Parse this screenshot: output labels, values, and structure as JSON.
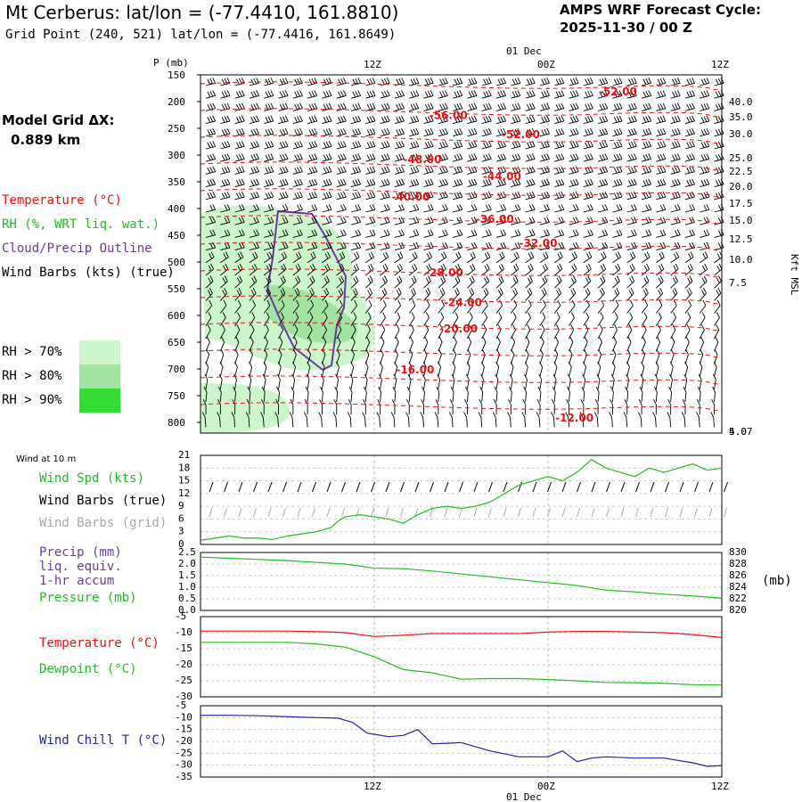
{
  "header": {
    "title": "Mt Cerberus:  lat/lon = (-77.4410, 161.8810)",
    "grid_point": "Grid Point (240, 521) lat/lon = (-77.4416, 161.8649)",
    "cycle_label": "AMPS WRF Forecast Cycle:",
    "cycle_value": "2025-11-30 / 00  Z"
  },
  "model_grid": {
    "label": "Model Grid ΔX:",
    "value": "0.889 km"
  },
  "colors": {
    "temperature": "#ee1111",
    "rh": "#22bb22",
    "cloud_outline": "#6a3a9e",
    "wind_barbs": "#000000",
    "wind_barbs_grid": "#aaaaaa",
    "rh70": "#ccf5cc",
    "rh80": "#a2e3a2",
    "rh90": "#33dd33",
    "wind_chill": "#2222aa",
    "precip_label": "#6a3a9e"
  },
  "upper_legend": {
    "temperature": "Temperature (°C)",
    "rh": "RH (%, WRT liq. wat.)",
    "cloud": "Cloud/Precip Outline",
    "wind": "Wind Barbs (kts) (true)",
    "rh70": "RH > 70%",
    "rh80": "RH > 80%",
    "rh90": "RH > 90%"
  },
  "wind_panel_labels": {
    "title": "Wind at 10 m",
    "speed": "Wind Spd (kts)",
    "barbs_true": "Wind Barbs (true)",
    "barbs_grid": "Wind Barbs (grid)"
  },
  "precip_panel_labels": {
    "precip": "Precip (mm)",
    "liq": "liq. equiv.",
    "accum": "1-hr accum",
    "pressure": "Pressure (mb)",
    "right_unit": "(mb)"
  },
  "temp_panel_labels": {
    "temperature": "Temperature (°C)",
    "dewpoint": "Dewpoint (°C)"
  },
  "chill_panel_labels": {
    "wind_chill": "Wind Chill T (°C)"
  },
  "chart_data": [
    {
      "type": "line",
      "name": "upper-air-cross-section",
      "yaxis_label": "P (mb)",
      "pressure_ticks": [
        "150",
        "200",
        "250",
        "300",
        "350",
        "400",
        "450",
        "500",
        "550",
        "600",
        "650",
        "700",
        "750",
        "800"
      ],
      "height_ticks": [
        "40.0",
        "35.0",
        "30.0",
        "25.0",
        "22.5",
        "20.0",
        "17.5",
        "15.0",
        "12.5",
        "10.0",
        "7.5",
        "5.0",
        "4.07"
      ],
      "height_label": "Kft MSL",
      "time_ticks_top": [
        "12Z",
        "00Z",
        "12Z"
      ],
      "date_label_top": "01 Dec",
      "xlim_hours": [
        0,
        36
      ],
      "ylim_mb": [
        150,
        820
      ],
      "temperature_labels": [
        {
          "text": "-52.00",
          "hour": 27.5,
          "p": 182
        },
        {
          "text": "-56.00",
          "hour": 15.8,
          "p": 226
        },
        {
          "text": "-52.00",
          "hour": 20.8,
          "p": 262
        },
        {
          "text": "-48.00",
          "hour": 14.0,
          "p": 308
        },
        {
          "text": "-44.00",
          "hour": 19.5,
          "p": 340
        },
        {
          "text": "-40.00",
          "hour": 13.2,
          "p": 378
        },
        {
          "text": "-36.00",
          "hour": 19.0,
          "p": 420
        },
        {
          "text": "-32.00",
          "hour": 22.0,
          "p": 465
        },
        {
          "text": "-28.00",
          "hour": 15.5,
          "p": 520
        },
        {
          "text": "-24.00",
          "hour": 16.8,
          "p": 576
        },
        {
          "text": "-20.00",
          "hour": 16.5,
          "p": 625
        },
        {
          "text": "-16.00",
          "hour": 13.5,
          "p": 702
        },
        {
          "text": "-12.00",
          "hour": 24.5,
          "p": 792
        }
      ]
    },
    {
      "type": "line",
      "name": "wind-10m",
      "yticks": [
        "21",
        "18",
        "15",
        "12",
        "9",
        "6",
        "3",
        "0"
      ],
      "ylim": [
        0,
        21
      ],
      "series": [
        {
          "name": "Wind Spd (kts)",
          "x": [
            0,
            1,
            2,
            3,
            4,
            5,
            6,
            7,
            8,
            9,
            9.5,
            10,
            11,
            12,
            13,
            14,
            15,
            16,
            17,
            18,
            19,
            20,
            21,
            22,
            23,
            24,
            25,
            26,
            27,
            28,
            29,
            30,
            31,
            32,
            33,
            34,
            35,
            36
          ],
          "values": [
            1,
            1.5,
            2,
            1.5,
            1.5,
            1.2,
            2,
            2.5,
            3,
            4,
            5.5,
            6.5,
            7,
            6.5,
            6,
            5,
            7,
            8.5,
            9,
            8.5,
            9,
            10,
            12,
            14,
            15,
            16,
            15,
            17,
            20,
            18,
            17,
            16,
            18,
            17,
            18,
            19,
            17.5,
            18
          ]
        }
      ]
    },
    {
      "type": "line",
      "name": "pressure",
      "yticks_left": [
        "2.5",
        "2.0",
        "1.5",
        "1.0",
        "0.5",
        "0.0"
      ],
      "yticks_right": [
        "830",
        "828",
        "826",
        "824",
        "822",
        "820"
      ],
      "ylim_right": [
        820,
        830
      ],
      "series": [
        {
          "name": "Pressure (mb)",
          "x": [
            0,
            2,
            4,
            6,
            8,
            10,
            12,
            14,
            16,
            18,
            20,
            22,
            24,
            26,
            28,
            30,
            32,
            34,
            36
          ],
          "values": [
            829.2,
            829.0,
            828.8,
            828.6,
            828.3,
            828.0,
            827.3,
            827.2,
            826.8,
            826.3,
            825.8,
            825.3,
            824.8,
            824.3,
            823.5,
            823.2,
            822.8,
            822.5,
            822.1
          ]
        }
      ]
    },
    {
      "type": "line",
      "name": "temperature-dewpoint",
      "yticks": [
        "-5",
        "-10",
        "-15",
        "-20",
        "-25",
        "-30"
      ],
      "ylim": [
        -30,
        -5
      ],
      "series": [
        {
          "name": "Temperature (°C)",
          "x": [
            0,
            3,
            6,
            9,
            10,
            12,
            14,
            16,
            18,
            20,
            22,
            24,
            26,
            28,
            30,
            32,
            34,
            36
          ],
          "values": [
            -9.5,
            -9.5,
            -9.5,
            -9.8,
            -10,
            -11.2,
            -10.8,
            -10.3,
            -10.3,
            -10.3,
            -10.3,
            -9.8,
            -9.6,
            -9.6,
            -9.8,
            -10,
            -10.6,
            -11.5
          ]
        },
        {
          "name": "Dewpoint (°C)",
          "x": [
            0,
            3,
            6,
            8,
            10,
            11,
            12,
            13,
            14,
            16,
            18,
            20,
            22,
            24,
            26,
            28,
            30,
            32,
            34,
            36
          ],
          "values": [
            -13,
            -13,
            -13,
            -13.5,
            -14.5,
            -16,
            -17.5,
            -19.5,
            -21.5,
            -22.5,
            -24.5,
            -24.3,
            -24.3,
            -24.6,
            -25,
            -25.5,
            -25.6,
            -25.8,
            -26.2,
            -26.3
          ]
        }
      ]
    },
    {
      "type": "line",
      "name": "wind-chill",
      "yticks": [
        "-5",
        "-10",
        "-15",
        "-20",
        "-25",
        "-30",
        "-35"
      ],
      "ylim": [
        -35,
        -5
      ],
      "time_ticks_bottom": [
        "12Z",
        "00Z",
        "12Z"
      ],
      "date_label_bottom": "01 Dec",
      "series": [
        {
          "name": "Wind Chill T (°C)",
          "x": [
            0,
            2,
            4,
            6,
            8,
            9.5,
            10.5,
            11.5,
            12,
            13,
            14,
            15,
            16,
            17,
            18,
            20,
            22,
            24,
            25,
            26,
            27,
            28,
            30,
            32,
            34,
            35,
            36
          ],
          "values": [
            -9,
            -9,
            -9.2,
            -9.6,
            -10,
            -10.2,
            -12,
            -16.5,
            -17,
            -18,
            -17.5,
            -15,
            -21,
            -20.8,
            -20.5,
            -24,
            -26.5,
            -26.5,
            -24,
            -28.5,
            -27,
            -26.5,
            -27,
            -27,
            -29,
            -30.5,
            -30.2
          ]
        }
      ]
    }
  ]
}
